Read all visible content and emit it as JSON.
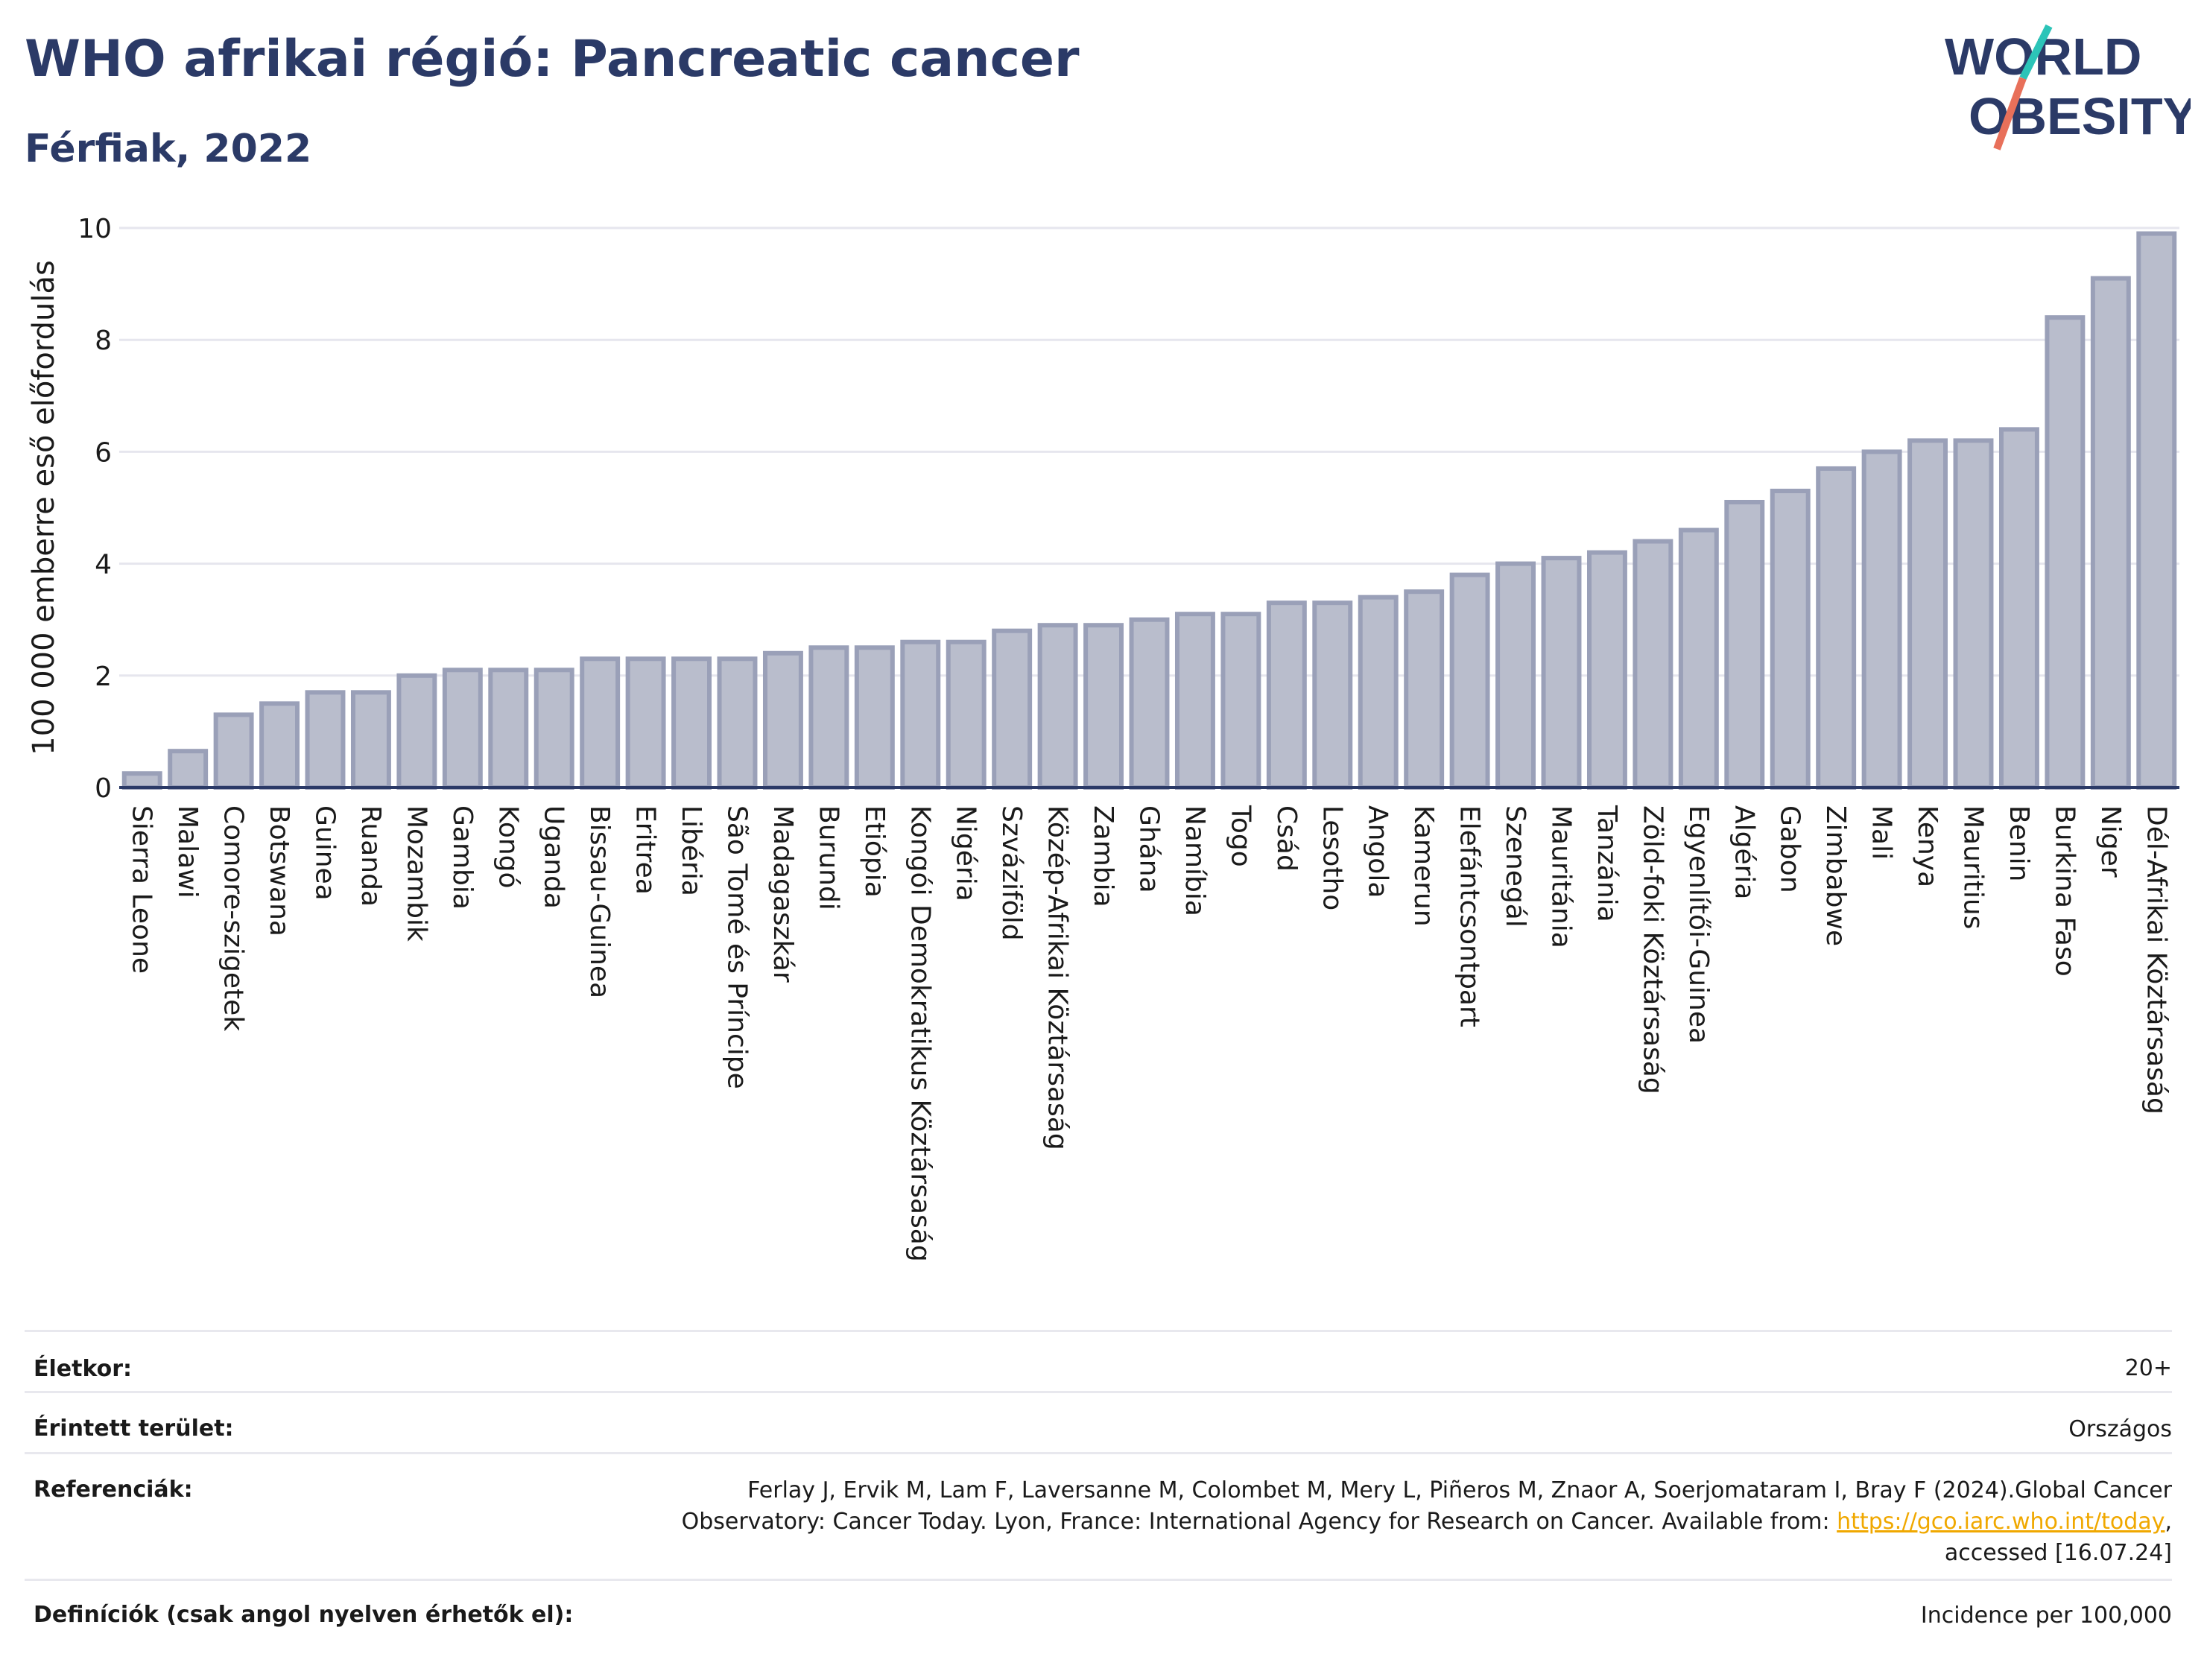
{
  "header": {
    "title": "WHO afrikai régió: Pancreatic cancer",
    "subtitle": "Férfiak, 2022"
  },
  "logo": {
    "line1": "WORLD",
    "line2": "OBESITY",
    "accent_colors": [
      "#2cc4b8",
      "#e8705a"
    ],
    "text_color": "#2b3a67"
  },
  "chart_data": {
    "type": "bar",
    "title": "",
    "xlabel": "",
    "ylabel": "100 000 emberre eső előfordulás",
    "ylim": [
      0,
      10
    ],
    "yticks": [
      0,
      2,
      4,
      6,
      8,
      10
    ],
    "grid": true,
    "bar_color": "#b9bdcc",
    "bar_border": "#9aa0b8",
    "categories": [
      "Sierra Leone",
      "Malawi",
      "Comore-szigetek",
      "Botswana",
      "Guinea",
      "Ruanda",
      "Mozambik",
      "Gambia",
      "Kongó",
      "Uganda",
      "Bissau-Guinea",
      "Eritrea",
      "Libéria",
      "São Tomé és Príncipe",
      "Madagaszkár",
      "Burundi",
      "Etiópia",
      "Kongói Demokratikus Köztársaság",
      "Nigéria",
      "Szváziföld",
      "Közép-Afrikai Köztársaság",
      "Zambia",
      "Ghána",
      "Namíbia",
      "Togo",
      "Csád",
      "Lesotho",
      "Angola",
      "Kamerun",
      "Elefántcsontpart",
      "Szenegál",
      "Mauritánia",
      "Tanzánia",
      "Zöld-foki Köztársaság",
      "Egyenlítői-Guinea",
      "Algéria",
      "Gabon",
      "Zimbabwe",
      "Mali",
      "Kenya",
      "Mauritius",
      "Benin",
      "Burkina Faso",
      "Niger",
      "Dél-Afrikai Köztársaság"
    ],
    "values": [
      0.25,
      0.65,
      1.3,
      1.5,
      1.7,
      1.7,
      2.0,
      2.1,
      2.1,
      2.1,
      2.3,
      2.3,
      2.3,
      2.3,
      2.4,
      2.5,
      2.5,
      2.6,
      2.6,
      2.8,
      2.9,
      2.9,
      3.0,
      3.1,
      3.1,
      3.3,
      3.3,
      3.4,
      3.5,
      3.8,
      4.0,
      4.1,
      4.2,
      4.4,
      4.6,
      5.1,
      5.3,
      5.7,
      6.0,
      6.2,
      6.2,
      6.4,
      8.4,
      9.1,
      9.9
    ]
  },
  "meta": {
    "age_label": "Életkor:",
    "age_value": "20+",
    "area_label": "Érintett terület:",
    "area_value": "Országos",
    "ref_label": "Referenciák:",
    "ref_line1": "Ferlay J, Ervik M, Lam F, Laversanne M, Colombet M, Mery L, Piñeros M, Znaor A, Soerjomataram I, Bray F (2024).Global Cancer",
    "ref_line2_pre": "Observatory: Cancer Today. Lyon, France: International Agency for Research on Cancer. Available from: ",
    "ref_link": "https://gco.iarc.who.int/today",
    "ref_line2_post": ",",
    "ref_line3": "accessed [16.07.24]",
    "def_label": "Definíciók (csak angol nyelven érhetők el):",
    "def_value": "Incidence per 100,000"
  }
}
